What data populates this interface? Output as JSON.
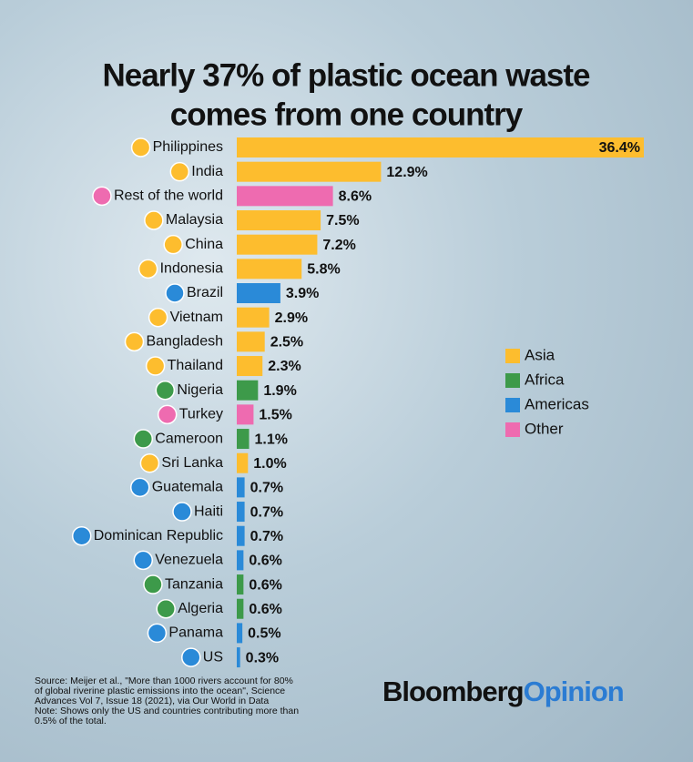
{
  "chart_data": {
    "type": "bar",
    "orientation": "horizontal",
    "title_lines": [
      "Nearly 37% of plastic ocean waste",
      "comes from one country"
    ],
    "categories": [
      "Philippines",
      "India",
      "Rest of the world",
      "Malaysia",
      "China",
      "Indonesia",
      "Brazil",
      "Vietnam",
      "Bangladesh",
      "Thailand",
      "Nigeria",
      "Turkey",
      "Cameroon",
      "Sri Lanka",
      "Guatemala",
      "Haiti",
      "Dominican Republic",
      "Venezuela",
      "Tanzania",
      "Algeria",
      "Panama",
      "US"
    ],
    "values": [
      36.4,
      12.9,
      8.6,
      7.5,
      7.2,
      5.8,
      3.9,
      2.9,
      2.5,
      2.3,
      1.9,
      1.5,
      1.1,
      1.0,
      0.7,
      0.7,
      0.7,
      0.6,
      0.6,
      0.6,
      0.5,
      0.3
    ],
    "value_labels": [
      "36.4%",
      "12.9%",
      "8.6%",
      "7.5%",
      "7.2%",
      "5.8%",
      "3.9%",
      "2.9%",
      "2.5%",
      "2.3%",
      "1.9%",
      "1.5%",
      "1.1%",
      "1.0%",
      "0.7%",
      "0.7%",
      "0.7%",
      "0.6%",
      "0.6%",
      "0.6%",
      "0.5%",
      "0.3%"
    ],
    "colors": [
      "#fdbd2e",
      "#fdbd2e",
      "#ee6bb0",
      "#fdbd2e",
      "#fdbd2e",
      "#fdbd2e",
      "#2a8ad8",
      "#fdbd2e",
      "#fdbd2e",
      "#fdbd2e",
      "#3d9a4a",
      "#ee6bb0",
      "#3d9a4a",
      "#fdbd2e",
      "#2a8ad8",
      "#2a8ad8",
      "#2a8ad8",
      "#2a8ad8",
      "#3d9a4a",
      "#3d9a4a",
      "#2a8ad8",
      "#2a8ad8"
    ],
    "legend": [
      {
        "name": "Asia",
        "color": "#fdbd2e"
      },
      {
        "name": "Africa",
        "color": "#3d9a4a"
      },
      {
        "name": "Americas",
        "color": "#2a8ad8"
      },
      {
        "name": "Other",
        "color": "#ee6bb0"
      }
    ],
    "source_lines": [
      "Source: Meijer et al., \"More than 1000 rivers account for 80%",
      "of global riverine plastic emissions into the ocean\", Science",
      "Advances Vol 7, Issue 18 (2021), via Our World in Data",
      "Note: Shows only the US and countries contributing more than",
      "0.5% of the total."
    ],
    "brand": [
      "Bloomberg",
      "Opinion"
    ]
  }
}
